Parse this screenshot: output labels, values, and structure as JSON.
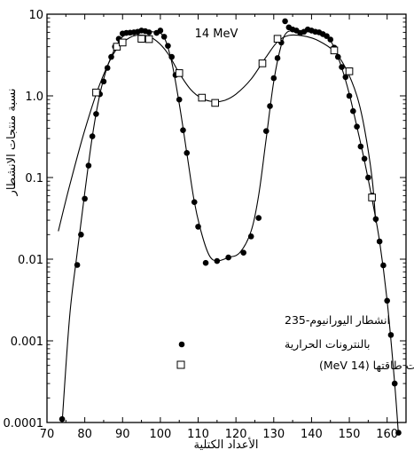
{
  "chart_data": {
    "type": "scatter",
    "annotation": "14 MeV",
    "xlabel": "الأعداد الكتلية",
    "ylabel": "نسبة منتجات الانشطار",
    "xlim": [
      70,
      165
    ],
    "ylim": [
      0.0001,
      10
    ],
    "yscale": "log",
    "x_ticks": [
      70,
      80,
      90,
      100,
      110,
      120,
      130,
      140,
      150,
      160
    ],
    "y_ticks": [
      {
        "value": 0.0001,
        "label": "0.0001"
      },
      {
        "value": 0.001,
        "label": "0.001"
      },
      {
        "value": 0.01,
        "label": "0.01"
      },
      {
        "value": 0.1,
        "label": "0.1"
      },
      {
        "value": 1,
        "label": "1.0"
      },
      {
        "value": 10,
        "label": "10"
      }
    ],
    "legend_title": "انشطار اليورانيوم-235",
    "legend_placement": "bottom-center",
    "series": [
      {
        "name": "بالنترونات الحرارية",
        "marker": "filled-circle",
        "points": [
          [
            74,
            0.00011
          ],
          [
            78,
            0.0085
          ],
          [
            79,
            0.02
          ],
          [
            80,
            0.055
          ],
          [
            81,
            0.14
          ],
          [
            82,
            0.32
          ],
          [
            83,
            0.6
          ],
          [
            84,
            1.05
          ],
          [
            85,
            1.5
          ],
          [
            86,
            2.2
          ],
          [
            87,
            3.0
          ],
          [
            88,
            4.0
          ],
          [
            89,
            5.0
          ],
          [
            90,
            5.8
          ],
          [
            91,
            5.9
          ],
          [
            92,
            5.95
          ],
          [
            93,
            6.0
          ],
          [
            94,
            6.1
          ],
          [
            95,
            6.3
          ],
          [
            96,
            6.2
          ],
          [
            97,
            6.0
          ],
          [
            99,
            5.9
          ],
          [
            100,
            6.3
          ],
          [
            101,
            5.3
          ],
          [
            102,
            4.1
          ],
          [
            103,
            3.0
          ],
          [
            104,
            1.8
          ],
          [
            105,
            0.9
          ],
          [
            106,
            0.38
          ],
          [
            107,
            0.2
          ],
          [
            109,
            0.05
          ],
          [
            110,
            0.025
          ],
          [
            112,
            0.009
          ],
          [
            115,
            0.0095
          ],
          [
            118,
            0.0105
          ],
          [
            122,
            0.012
          ],
          [
            124,
            0.019
          ],
          [
            126,
            0.032
          ],
          [
            128,
            0.37
          ],
          [
            129,
            0.75
          ],
          [
            130,
            1.65
          ],
          [
            131,
            2.9
          ],
          [
            132,
            4.5
          ],
          [
            133,
            8.2
          ],
          [
            134,
            6.9
          ],
          [
            135,
            6.5
          ],
          [
            136,
            6.3
          ],
          [
            137,
            5.9
          ],
          [
            138,
            6.1
          ],
          [
            139,
            6.5
          ],
          [
            140,
            6.3
          ],
          [
            141,
            6.1
          ],
          [
            142,
            6.0
          ],
          [
            143,
            5.7
          ],
          [
            144,
            5.4
          ],
          [
            145,
            4.9
          ],
          [
            146,
            3.9
          ],
          [
            147,
            3.0
          ],
          [
            148,
            2.25
          ],
          [
            149,
            1.7
          ],
          [
            150,
            1.0
          ],
          [
            151,
            0.65
          ],
          [
            152,
            0.42
          ],
          [
            153,
            0.24
          ],
          [
            154,
            0.17
          ],
          [
            155,
            0.1
          ],
          [
            156,
            0.06
          ],
          [
            157,
            0.031
          ],
          [
            158,
            0.0165
          ],
          [
            159,
            0.0084
          ],
          [
            160,
            0.0031
          ],
          [
            161,
            0.00118
          ],
          [
            162,
            0.0003
          ],
          [
            163,
            7.5e-05
          ]
        ],
        "curve": [
          [
            74,
            0.0001
          ],
          [
            76,
            0.002
          ],
          [
            78,
            0.012
          ],
          [
            80,
            0.065
          ],
          [
            82,
            0.32
          ],
          [
            84,
            1.05
          ],
          [
            86,
            2.3
          ],
          [
            88,
            3.8
          ],
          [
            90,
            5.3
          ],
          [
            93,
            6.0
          ],
          [
            96,
            6.1
          ],
          [
            99,
            6.0
          ],
          [
            101,
            5.2
          ],
          [
            103,
            2.6
          ],
          [
            105,
            0.8
          ],
          [
            107,
            0.2
          ],
          [
            109,
            0.05
          ],
          [
            111,
            0.02
          ],
          [
            113,
            0.011
          ],
          [
            115,
            0.0095
          ],
          [
            118,
            0.0105
          ],
          [
            121,
            0.012
          ],
          [
            124,
            0.022
          ],
          [
            126,
            0.06
          ],
          [
            128,
            0.3
          ],
          [
            130,
            1.5
          ],
          [
            132,
            4.2
          ],
          [
            133.5,
            6.0
          ],
          [
            136,
            6.2
          ],
          [
            139,
            6.1
          ],
          [
            142,
            5.9
          ],
          [
            144,
            5.4
          ],
          [
            146,
            3.9
          ],
          [
            148,
            2.2
          ],
          [
            150,
            1.05
          ],
          [
            152,
            0.42
          ],
          [
            154,
            0.16
          ],
          [
            156,
            0.055
          ],
          [
            158,
            0.0165
          ],
          [
            160,
            0.0031
          ],
          [
            162,
            0.0003
          ],
          [
            163,
            7e-05
          ]
        ]
      },
      {
        "name": "بنترونات طاقتها (14 MeV)",
        "marker": "open-square",
        "points": [
          [
            83,
            1.1
          ],
          [
            88.5,
            4.0
          ],
          [
            90,
            4.5
          ],
          [
            95,
            5.0
          ],
          [
            97,
            4.95
          ],
          [
            105,
            1.9
          ],
          [
            111,
            0.95
          ],
          [
            114.5,
            0.82
          ],
          [
            127,
            2.5
          ],
          [
            131,
            5.0
          ],
          [
            146,
            3.6
          ],
          [
            150,
            2.0
          ],
          [
            156,
            0.057
          ]
        ],
        "curve": [
          [
            73,
            0.022
          ],
          [
            76,
            0.08
          ],
          [
            80,
            0.38
          ],
          [
            84,
            1.4
          ],
          [
            88,
            3.5
          ],
          [
            92,
            5.2
          ],
          [
            96,
            5.5
          ],
          [
            99,
            4.7
          ],
          [
            102,
            3.3
          ],
          [
            105,
            1.9
          ],
          [
            108,
            1.2
          ],
          [
            111,
            0.93
          ],
          [
            114,
            0.85
          ],
          [
            117,
            0.88
          ],
          [
            120,
            1.05
          ],
          [
            124,
            1.6
          ],
          [
            128,
            3.0
          ],
          [
            131,
            4.6
          ],
          [
            134,
            5.5
          ],
          [
            138,
            5.4
          ],
          [
            142,
            4.7
          ],
          [
            146,
            3.5
          ],
          [
            149,
            2.2
          ],
          [
            152,
            1.0
          ],
          [
            154,
            0.4
          ],
          [
            156,
            0.1
          ],
          [
            157,
            0.028
          ]
        ]
      }
    ]
  }
}
